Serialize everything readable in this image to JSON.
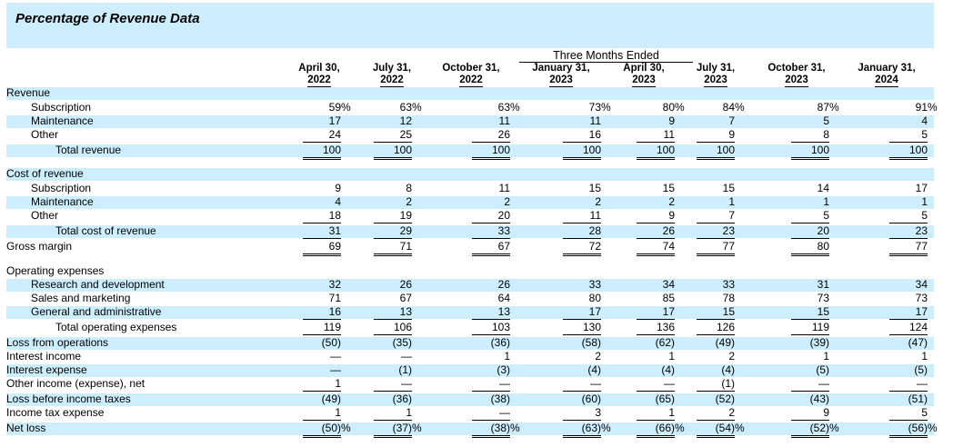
{
  "title": "Percentage of Revenue Data",
  "group_header": "Three Months Ended",
  "columns": [
    {
      "line1": "April 30,",
      "line2": "2022"
    },
    {
      "line1": "July 31,",
      "line2": "2022"
    },
    {
      "line1": "October 31,",
      "line2": "2022"
    },
    {
      "line1": "January 31,",
      "line2": "2023"
    },
    {
      "line1": "April 30,",
      "line2": "2023"
    },
    {
      "line1": "July 31,",
      "line2": "2023"
    },
    {
      "line1": "October 31,",
      "line2": "2023"
    },
    {
      "line1": "January 31,",
      "line2": "2024"
    }
  ],
  "rows": [
    {
      "label": "Revenue",
      "indent": 0,
      "values": []
    },
    {
      "label": "Subscription",
      "indent": 1,
      "values": [
        "59",
        "63",
        "63",
        "73",
        "80",
        "84",
        "87",
        "91"
      ],
      "suffix": "%"
    },
    {
      "label": "Maintenance",
      "indent": 1,
      "values": [
        "17",
        "12",
        "11",
        "11",
        "9",
        "7",
        "5",
        "4"
      ]
    },
    {
      "label": "Other",
      "indent": 1,
      "values": [
        "24",
        "25",
        "26",
        "16",
        "11",
        "9",
        "8",
        "5"
      ],
      "rule": "single"
    },
    {
      "label": "Total revenue",
      "indent": 2,
      "values": [
        "100",
        "100",
        "100",
        "100",
        "100",
        "100",
        "100",
        "100"
      ],
      "rule": "double"
    },
    {
      "label": "",
      "indent": 0,
      "values": []
    },
    {
      "label": "Cost of revenue",
      "indent": 0,
      "values": []
    },
    {
      "label": "Subscription",
      "indent": 1,
      "values": [
        "9",
        "8",
        "11",
        "15",
        "15",
        "15",
        "14",
        "17"
      ]
    },
    {
      "label": "Maintenance",
      "indent": 1,
      "values": [
        "4",
        "2",
        "2",
        "2",
        "2",
        "1",
        "1",
        "1"
      ]
    },
    {
      "label": "Other",
      "indent": 1,
      "values": [
        "18",
        "19",
        "20",
        "11",
        "9",
        "7",
        "5",
        "5"
      ],
      "rule": "single"
    },
    {
      "label": "Total cost of revenue",
      "indent": 2,
      "values": [
        "31",
        "29",
        "33",
        "28",
        "26",
        "23",
        "20",
        "23"
      ],
      "rule": "single"
    },
    {
      "label": "Gross margin",
      "indent": 0,
      "values": [
        "69",
        "71",
        "67",
        "72",
        "74",
        "77",
        "80",
        "77"
      ],
      "rule": "double"
    },
    {
      "label": "",
      "indent": 0,
      "values": []
    },
    {
      "label": "Operating expenses",
      "indent": 0,
      "values": []
    },
    {
      "label": "Research and development",
      "indent": 1,
      "values": [
        "32",
        "26",
        "26",
        "33",
        "34",
        "33",
        "31",
        "34"
      ]
    },
    {
      "label": "Sales and marketing",
      "indent": 1,
      "values": [
        "71",
        "67",
        "64",
        "80",
        "85",
        "78",
        "73",
        "73"
      ]
    },
    {
      "label": "General and administrative",
      "indent": 1,
      "values": [
        "16",
        "13",
        "13",
        "17",
        "17",
        "15",
        "15",
        "17"
      ],
      "rule": "single"
    },
    {
      "label": "Total operating expenses",
      "indent": 2,
      "values": [
        "119",
        "106",
        "103",
        "130",
        "136",
        "126",
        "119",
        "124"
      ],
      "rule": "single"
    },
    {
      "label": "Loss from operations",
      "indent": 0,
      "values": [
        "(50)",
        "(35)",
        "(36)",
        "(58)",
        "(62)",
        "(49)",
        "(39)",
        "(47)"
      ]
    },
    {
      "label": "Interest income",
      "indent": 0,
      "values": [
        "—",
        "—",
        "1",
        "2",
        "1",
        "2",
        "1",
        "1"
      ]
    },
    {
      "label": "Interest expense",
      "indent": 0,
      "values": [
        "—",
        "(1)",
        "(3)",
        "(4)",
        "(4)",
        "(4)",
        "(5)",
        "(5)"
      ]
    },
    {
      "label": "Other income (expense), net",
      "indent": 0,
      "values": [
        "1",
        "—",
        "—",
        "—",
        "—",
        "(1)",
        "—",
        "—"
      ],
      "rule": "single"
    },
    {
      "label": "Loss before income taxes",
      "indent": 0,
      "values": [
        "(49)",
        "(36)",
        "(38)",
        "(60)",
        "(65)",
        "(52)",
        "(43)",
        "(51)"
      ]
    },
    {
      "label": "Income tax expense",
      "indent": 0,
      "values": [
        "1",
        "1",
        "—",
        "3",
        "1",
        "2",
        "9",
        "5"
      ],
      "rule": "single"
    },
    {
      "label": "Net loss",
      "indent": 0,
      "values": [
        "(50)",
        "(37)",
        "(38)",
        "(63)",
        "(66)",
        "(54)",
        "(52)",
        "(56)"
      ],
      "suffix": "%",
      "rule": "double"
    }
  ]
}
